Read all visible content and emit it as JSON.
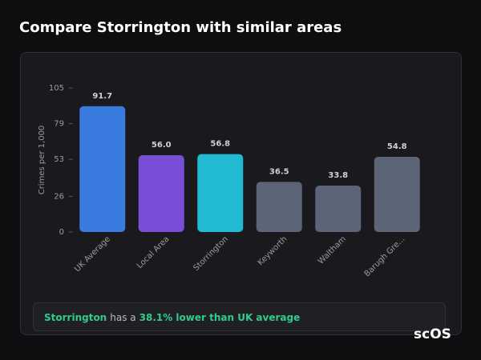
{
  "header": {
    "title": "Compare Storrington with similar areas"
  },
  "chart_data": {
    "type": "bar",
    "y_label": "Crimes per 1,000",
    "categories": [
      "UK Average",
      "Local Area",
      "Storrington",
      "Keyworth",
      "Waltham",
      "Barugh Gre..."
    ],
    "values": [
      91.7,
      56.0,
      56.8,
      36.5,
      33.8,
      54.8
    ],
    "value_labels": [
      "91.7",
      "56.0",
      "56.8",
      "36.5",
      "33.8",
      "54.8"
    ],
    "colors": [
      "#3a7be0",
      "#7a4fd8",
      "#22b9d2",
      "#5b6577",
      "#5b6577",
      "#5b6577"
    ],
    "ylim": [
      0,
      105
    ],
    "yticks": [
      0,
      26,
      53,
      79,
      105
    ]
  },
  "summary": {
    "area": "Storrington",
    "text": "has a",
    "highlight": "38.1% lower than UK average"
  },
  "logo": "scOS"
}
